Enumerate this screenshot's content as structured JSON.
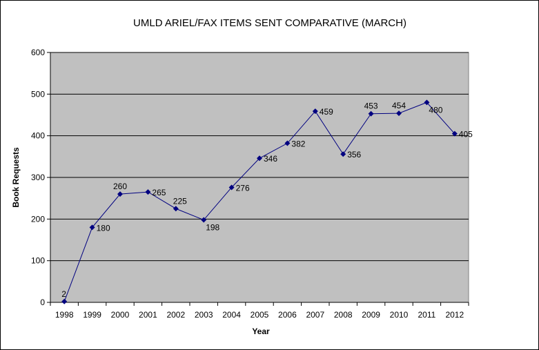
{
  "chart_data": {
    "type": "line",
    "title": "UMLD ARIEL/FAX ITEMS SENT COMPARATIVE (MARCH)",
    "xlabel": "Year",
    "ylabel": "Book Requests",
    "categories": [
      "1998",
      "1999",
      "2000",
      "2001",
      "2002",
      "2003",
      "2004",
      "2005",
      "2006",
      "2007",
      "2008",
      "2009",
      "2010",
      "2011",
      "2012"
    ],
    "values": [
      2,
      180,
      260,
      265,
      225,
      198,
      276,
      346,
      382,
      459,
      356,
      453,
      454,
      480,
      405
    ],
    "ylim": [
      0,
      600
    ],
    "yticks": [
      0,
      100,
      200,
      300,
      400,
      500,
      600
    ],
    "grid": true,
    "legend": "none",
    "data_labels": true,
    "colors": {
      "line": "#000080",
      "plot_bg": "#c0c0c0",
      "grid": "#000000"
    }
  }
}
